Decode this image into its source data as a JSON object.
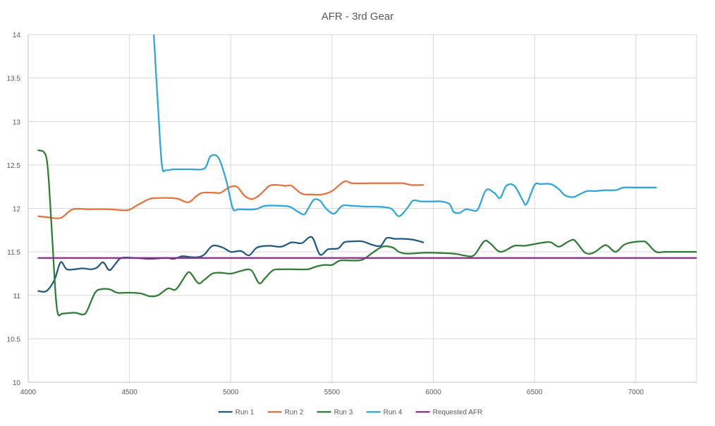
{
  "chart_data": {
    "type": "line",
    "title": "AFR - 3rd Gear",
    "xlabel": "",
    "ylabel": "",
    "xlim": [
      4000,
      7300
    ],
    "ylim": [
      10,
      14
    ],
    "x_ticks": [
      4000,
      4500,
      5000,
      5500,
      6000,
      6500,
      7000
    ],
    "x_tick_labels": [
      "4000",
      "4500",
      "5000",
      "5500",
      "6000",
      "6500",
      "7000"
    ],
    "y_ticks": [
      10,
      10.5,
      11,
      11.5,
      12,
      12.5,
      13,
      13.5,
      14
    ],
    "y_tick_labels": [
      "10",
      "10.5",
      "11",
      "11.5",
      "12",
      "12.5",
      "13",
      "13.5",
      "14"
    ],
    "grid": true,
    "legend_position": "bottom",
    "series": [
      {
        "name": "Run 1",
        "color": "#1f5a85",
        "points": [
          [
            4050,
            11.05
          ],
          [
            4090,
            11.05
          ],
          [
            4130,
            11.18
          ],
          [
            4160,
            11.38
          ],
          [
            4190,
            11.3
          ],
          [
            4230,
            11.3
          ],
          [
            4270,
            11.31
          ],
          [
            4310,
            11.3
          ],
          [
            4340,
            11.32
          ],
          [
            4370,
            11.38
          ],
          [
            4400,
            11.29
          ],
          [
            4430,
            11.36
          ],
          [
            4460,
            11.43
          ],
          [
            4530,
            11.43
          ],
          [
            4600,
            11.42
          ],
          [
            4680,
            11.43
          ],
          [
            4720,
            11.42
          ],
          [
            4760,
            11.45
          ],
          [
            4800,
            11.44
          ],
          [
            4840,
            11.44
          ],
          [
            4870,
            11.47
          ],
          [
            4910,
            11.57
          ],
          [
            4960,
            11.55
          ],
          [
            5000,
            11.5
          ],
          [
            5050,
            11.51
          ],
          [
            5090,
            11.46
          ],
          [
            5130,
            11.55
          ],
          [
            5190,
            11.57
          ],
          [
            5250,
            11.56
          ],
          [
            5300,
            11.61
          ],
          [
            5350,
            11.6
          ],
          [
            5400,
            11.67
          ],
          [
            5440,
            11.47
          ],
          [
            5480,
            11.53
          ],
          [
            5530,
            11.54
          ],
          [
            5560,
            11.61
          ],
          [
            5600,
            11.62
          ],
          [
            5650,
            11.62
          ],
          [
            5700,
            11.58
          ],
          [
            5740,
            11.57
          ],
          [
            5770,
            11.66
          ],
          [
            5810,
            11.65
          ],
          [
            5850,
            11.65
          ],
          [
            5900,
            11.64
          ],
          [
            5950,
            11.61
          ]
        ]
      },
      {
        "name": "Run 2",
        "color": "#e8723a",
        "points": [
          [
            4050,
            11.91
          ],
          [
            4090,
            11.9
          ],
          [
            4160,
            11.89
          ],
          [
            4220,
            11.99
          ],
          [
            4300,
            11.99
          ],
          [
            4400,
            11.99
          ],
          [
            4490,
            11.98
          ],
          [
            4540,
            12.04
          ],
          [
            4600,
            12.11
          ],
          [
            4650,
            12.12
          ],
          [
            4700,
            12.12
          ],
          [
            4740,
            12.11
          ],
          [
            4790,
            12.07
          ],
          [
            4830,
            12.14
          ],
          [
            4860,
            12.18
          ],
          [
            4920,
            12.18
          ],
          [
            4950,
            12.18
          ],
          [
            4990,
            12.24
          ],
          [
            5030,
            12.25
          ],
          [
            5070,
            12.14
          ],
          [
            5110,
            12.11
          ],
          [
            5150,
            12.17
          ],
          [
            5190,
            12.26
          ],
          [
            5230,
            12.27
          ],
          [
            5270,
            12.26
          ],
          [
            5300,
            12.26
          ],
          [
            5350,
            12.17
          ],
          [
            5400,
            12.16
          ],
          [
            5450,
            12.16
          ],
          [
            5500,
            12.2
          ],
          [
            5560,
            12.31
          ],
          [
            5600,
            12.29
          ],
          [
            5700,
            12.29
          ],
          [
            5800,
            12.29
          ],
          [
            5850,
            12.29
          ],
          [
            5890,
            12.27
          ],
          [
            5950,
            12.27
          ]
        ]
      },
      {
        "name": "Run 3",
        "color": "#2e7d32",
        "points": [
          [
            4050,
            12.67
          ],
          [
            4090,
            12.58
          ],
          [
            4110,
            12.0
          ],
          [
            4130,
            11.2
          ],
          [
            4145,
            10.8
          ],
          [
            4170,
            10.79
          ],
          [
            4230,
            10.8
          ],
          [
            4270,
            10.78
          ],
          [
            4290,
            10.82
          ],
          [
            4330,
            11.03
          ],
          [
            4360,
            11.07
          ],
          [
            4400,
            11.07
          ],
          [
            4440,
            11.03
          ],
          [
            4480,
            11.03
          ],
          [
            4520,
            11.03
          ],
          [
            4560,
            11.02
          ],
          [
            4600,
            10.99
          ],
          [
            4640,
            11.0
          ],
          [
            4690,
            11.08
          ],
          [
            4730,
            11.07
          ],
          [
            4780,
            11.24
          ],
          [
            4800,
            11.26
          ],
          [
            4840,
            11.14
          ],
          [
            4870,
            11.18
          ],
          [
            4910,
            11.25
          ],
          [
            4950,
            11.26
          ],
          [
            5000,
            11.25
          ],
          [
            5050,
            11.28
          ],
          [
            5100,
            11.29
          ],
          [
            5140,
            11.14
          ],
          [
            5170,
            11.2
          ],
          [
            5210,
            11.29
          ],
          [
            5260,
            11.3
          ],
          [
            5310,
            11.3
          ],
          [
            5380,
            11.3
          ],
          [
            5420,
            11.33
          ],
          [
            5460,
            11.35
          ],
          [
            5500,
            11.35
          ],
          [
            5540,
            11.4
          ],
          [
            5600,
            11.4
          ],
          [
            5650,
            11.41
          ],
          [
            5700,
            11.49
          ],
          [
            5750,
            11.56
          ],
          [
            5800,
            11.55
          ],
          [
            5830,
            11.5
          ],
          [
            5870,
            11.48
          ],
          [
            5950,
            11.49
          ],
          [
            6000,
            11.49
          ],
          [
            6100,
            11.48
          ],
          [
            6150,
            11.46
          ],
          [
            6200,
            11.46
          ],
          [
            6250,
            11.62
          ],
          [
            6280,
            11.6
          ],
          [
            6320,
            11.51
          ],
          [
            6350,
            11.51
          ],
          [
            6400,
            11.57
          ],
          [
            6450,
            11.57
          ],
          [
            6500,
            11.59
          ],
          [
            6550,
            11.61
          ],
          [
            6580,
            11.61
          ],
          [
            6620,
            11.56
          ],
          [
            6660,
            11.61
          ],
          [
            6690,
            11.64
          ],
          [
            6710,
            11.6
          ],
          [
            6750,
            11.49
          ],
          [
            6790,
            11.49
          ],
          [
            6840,
            11.57
          ],
          [
            6860,
            11.57
          ],
          [
            6900,
            11.5
          ],
          [
            6940,
            11.58
          ],
          [
            6980,
            11.61
          ],
          [
            7040,
            11.62
          ],
          [
            7060,
            11.59
          ],
          [
            7100,
            11.5
          ],
          [
            7150,
            11.5
          ],
          [
            7300,
            11.5
          ]
        ]
      },
      {
        "name": "Run 4",
        "color": "#2ba6de",
        "points": [
          [
            4620,
            14.0
          ],
          [
            4640,
            13.2
          ],
          [
            4660,
            12.5
          ],
          [
            4680,
            12.44
          ],
          [
            4720,
            12.45
          ],
          [
            4800,
            12.45
          ],
          [
            4870,
            12.46
          ],
          [
            4900,
            12.6
          ],
          [
            4940,
            12.58
          ],
          [
            4980,
            12.3
          ],
          [
            5010,
            12.0
          ],
          [
            5040,
            11.99
          ],
          [
            5120,
            11.99
          ],
          [
            5170,
            12.03
          ],
          [
            5250,
            12.03
          ],
          [
            5290,
            12.02
          ],
          [
            5320,
            11.98
          ],
          [
            5360,
            11.93
          ],
          [
            5380,
            11.99
          ],
          [
            5410,
            12.1
          ],
          [
            5440,
            12.09
          ],
          [
            5470,
            12.0
          ],
          [
            5510,
            11.94
          ],
          [
            5550,
            12.03
          ],
          [
            5600,
            12.03
          ],
          [
            5670,
            12.02
          ],
          [
            5720,
            12.02
          ],
          [
            5790,
            12.0
          ],
          [
            5830,
            11.91
          ],
          [
            5870,
            12.0
          ],
          [
            5900,
            12.09
          ],
          [
            5940,
            12.08
          ],
          [
            6000,
            12.08
          ],
          [
            6040,
            12.08
          ],
          [
            6080,
            12.05
          ],
          [
            6100,
            11.96
          ],
          [
            6130,
            11.95
          ],
          [
            6160,
            11.99
          ],
          [
            6190,
            11.98
          ],
          [
            6220,
            11.99
          ],
          [
            6260,
            12.21
          ],
          [
            6300,
            12.18
          ],
          [
            6330,
            12.12
          ],
          [
            6360,
            12.26
          ],
          [
            6400,
            12.26
          ],
          [
            6440,
            12.1
          ],
          [
            6460,
            12.05
          ],
          [
            6500,
            12.27
          ],
          [
            6530,
            12.28
          ],
          [
            6580,
            12.28
          ],
          [
            6620,
            12.22
          ],
          [
            6650,
            12.15
          ],
          [
            6690,
            12.13
          ],
          [
            6720,
            12.16
          ],
          [
            6760,
            12.2
          ],
          [
            6800,
            12.2
          ],
          [
            6850,
            12.21
          ],
          [
            6900,
            12.21
          ],
          [
            6940,
            12.24
          ],
          [
            7000,
            12.24
          ],
          [
            7100,
            12.24
          ]
        ]
      },
      {
        "name": "Requested AFR",
        "color": "#8e2a8e",
        "points": [
          [
            4050,
            11.43
          ],
          [
            7300,
            11.43
          ]
        ]
      }
    ]
  }
}
